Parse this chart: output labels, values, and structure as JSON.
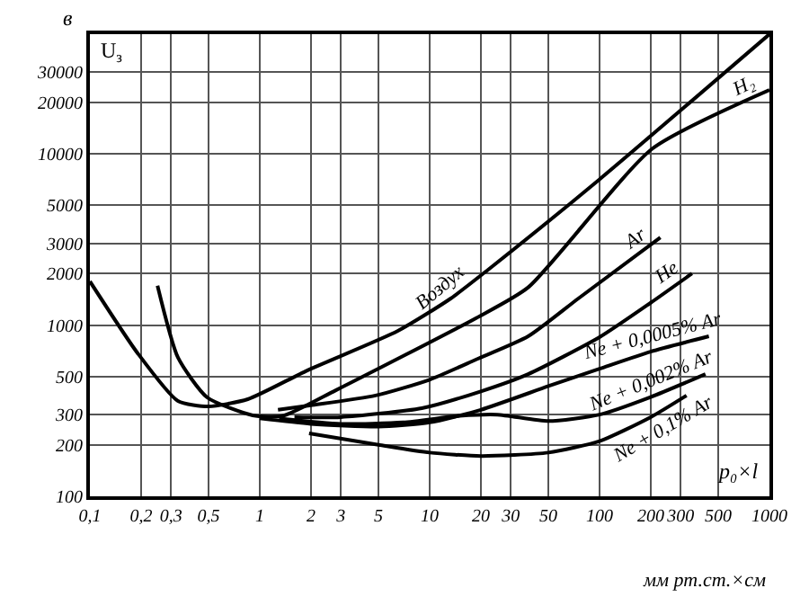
{
  "chart_data": {
    "type": "line",
    "xlabel": "p₀×l",
    "ylabel": "U$_{з}$",
    "annotations": [
      "в",
      "мм рт.ст.×см"
    ],
    "log": "xy",
    "grid": true,
    "legend": false,
    "marker": "none",
    "line_style": "solid",
    "xlim": [
      0.1,
      1000
    ],
    "ylim": [
      100,
      50000
    ],
    "xticks": [
      {
        "value": 0.1,
        "label": "0,1"
      },
      {
        "value": 0.2,
        "label": "0,2"
      },
      {
        "value": 0.3,
        "label": "0,3"
      },
      {
        "value": 0.5,
        "label": "0,5"
      },
      1,
      2,
      3,
      5,
      10,
      20,
      30,
      50,
      100,
      200,
      300,
      500,
      1000
    ],
    "yticks": [
      100,
      200,
      300,
      500,
      1000,
      2000,
      3000,
      5000,
      10000,
      20000,
      30000
    ],
    "series": [
      {
        "name": "Воздух",
        "color": "#000000",
        "x": [
          0.1,
          0.19,
          0.33,
          0.5,
          0.85,
          1.9,
          6.5,
          13.3,
          22,
          100,
          1000
        ],
        "values": [
          1800,
          690,
          360,
          335,
          369,
          543,
          925,
          1430,
          2100,
          7100,
          50000
        ]
      },
      {
        "name": "H₂",
        "color": "#000000",
        "x": [
          0.25,
          0.33,
          0.49,
          0.91,
          1.37,
          2.8,
          18.8,
          38,
          204,
          1000
        ],
        "values": [
          1700,
          646,
          378,
          297,
          295,
          416,
          1100,
          1660,
          10700,
          23600
        ]
      },
      {
        "name": "Ar",
        "color": "#000000",
        "x": [
          1.28,
          2,
          4.8,
          10,
          18.8,
          38,
          75,
          228
        ],
        "values": [
          320,
          340,
          388,
          480,
          630,
          860,
          1430,
          3250
        ]
      },
      {
        "name": "He",
        "color": "#000000",
        "x": [
          1.6,
          3,
          9,
          20,
          38,
          100,
          200,
          350
        ],
        "values": [
          290,
          290,
          327,
          410,
          517,
          850,
          1350,
          2000
        ]
      },
      {
        "name": "Ne + 0,0005% Ar",
        "color": "#000000",
        "x": [
          1,
          2,
          5,
          10,
          20,
          50,
          100,
          200,
          440
        ],
        "values": [
          285,
          265,
          255,
          270,
          320,
          440,
          556,
          700,
          860
        ]
      },
      {
        "name": "Ne + 0,002% Ar",
        "color": "#000000",
        "x": [
          1.3,
          3,
          7,
          15,
          25,
          50,
          100,
          200,
          420
        ],
        "values": [
          285,
          265,
          270,
          295,
          300,
          275,
          300,
          380,
          517
        ]
      },
      {
        "name": "Ne + 0,1% Ar",
        "color": "#000000",
        "x": [
          1.95,
          5,
          10,
          20,
          50,
          100,
          200,
          325
        ],
        "values": [
          233,
          200,
          180,
          172,
          180,
          210,
          290,
          388
        ]
      }
    ]
  }
}
